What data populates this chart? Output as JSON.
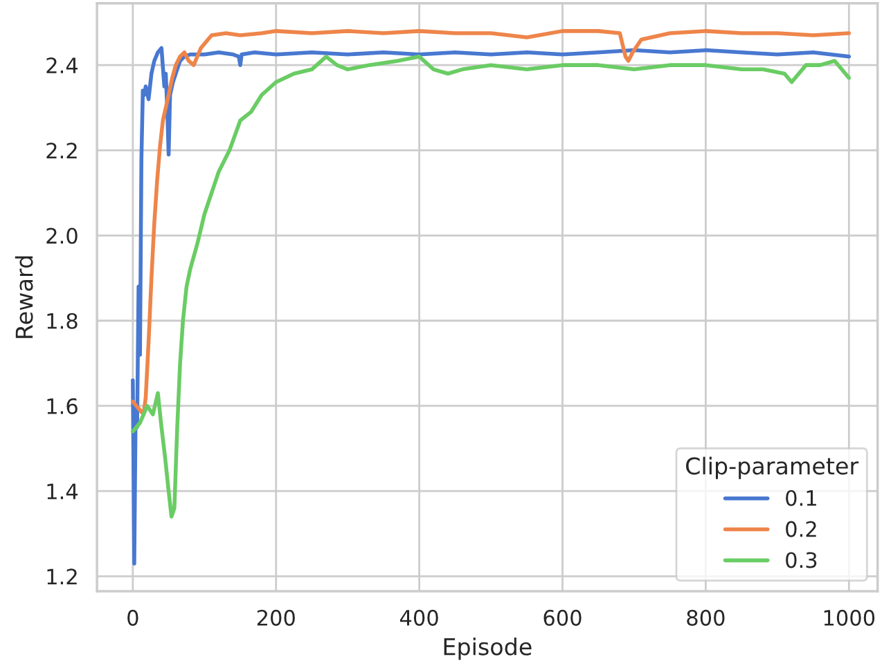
{
  "chart_data": {
    "type": "line",
    "xlabel": "Episode",
    "ylabel": "Reward",
    "legend_title": "Clip-parameter",
    "legend": "bottom right",
    "grid": true,
    "xlim": [
      -50,
      1040
    ],
    "ylim": [
      1.165,
      2.545
    ],
    "xticks": [
      0,
      200,
      400,
      600,
      800,
      1000
    ],
    "yticks": [
      1.2,
      1.4,
      1.6,
      1.8,
      {
        "value": 2,
        "label": "2.0"
      },
      2.2,
      2.4
    ],
    "series": [
      {
        "name": "0.1",
        "color": "#4878d0",
        "x": [
          0,
          2,
          4,
          6,
          8,
          10,
          12,
          14,
          16,
          18,
          22,
          26,
          30,
          35,
          40,
          44,
          46,
          48,
          50,
          52,
          56,
          60,
          66,
          72,
          80,
          100,
          120,
          140,
          148,
          150,
          152,
          170,
          200,
          250,
          300,
          350,
          400,
          450,
          500,
          550,
          600,
          650,
          700,
          750,
          800,
          850,
          900,
          950,
          1000
        ],
        "values": [
          1.66,
          1.23,
          1.6,
          1.55,
          1.88,
          1.72,
          2.18,
          2.34,
          2.33,
          2.35,
          2.32,
          2.38,
          2.41,
          2.43,
          2.44,
          2.35,
          2.38,
          2.3,
          2.19,
          2.33,
          2.36,
          2.38,
          2.41,
          2.42,
          2.425,
          2.425,
          2.43,
          2.425,
          2.42,
          2.4,
          2.425,
          2.43,
          2.425,
          2.43,
          2.425,
          2.43,
          2.425,
          2.43,
          2.425,
          2.43,
          2.425,
          2.43,
          2.435,
          2.43,
          2.435,
          2.43,
          2.425,
          2.43,
          2.42
        ]
      },
      {
        "name": "0.2",
        "color": "#ee854a",
        "x": [
          0,
          5,
          10,
          15,
          18,
          22,
          26,
          30,
          34,
          38,
          42,
          46,
          50,
          55,
          60,
          66,
          72,
          78,
          85,
          95,
          110,
          130,
          150,
          180,
          200,
          250,
          300,
          350,
          400,
          450,
          500,
          550,
          600,
          650,
          680,
          688,
          692,
          698,
          710,
          750,
          800,
          850,
          900,
          950,
          1000
        ],
        "values": [
          1.61,
          1.6,
          1.59,
          1.58,
          1.62,
          1.75,
          1.9,
          2.03,
          2.13,
          2.21,
          2.27,
          2.3,
          2.33,
          2.37,
          2.4,
          2.42,
          2.43,
          2.41,
          2.4,
          2.44,
          2.47,
          2.475,
          2.47,
          2.475,
          2.48,
          2.475,
          2.48,
          2.475,
          2.48,
          2.475,
          2.475,
          2.465,
          2.48,
          2.48,
          2.475,
          2.42,
          2.41,
          2.43,
          2.46,
          2.475,
          2.48,
          2.475,
          2.475,
          2.47,
          2.475
        ]
      },
      {
        "name": "0.3",
        "color": "#6acc64",
        "x": [
          0,
          10,
          20,
          28,
          35,
          40,
          45,
          50,
          54,
          58,
          62,
          66,
          70,
          75,
          80,
          90,
          100,
          110,
          120,
          135,
          150,
          165,
          180,
          200,
          225,
          250,
          270,
          285,
          300,
          330,
          370,
          400,
          420,
          440,
          460,
          500,
          550,
          600,
          650,
          700,
          750,
          800,
          850,
          880,
          910,
          920,
          940,
          960,
          980,
          990,
          1000
        ],
        "values": [
          1.54,
          1.56,
          1.6,
          1.58,
          1.63,
          1.55,
          1.48,
          1.4,
          1.34,
          1.36,
          1.55,
          1.7,
          1.8,
          1.88,
          1.92,
          1.98,
          2.05,
          2.1,
          2.15,
          2.2,
          2.27,
          2.29,
          2.33,
          2.36,
          2.38,
          2.39,
          2.42,
          2.4,
          2.39,
          2.4,
          2.41,
          2.42,
          2.39,
          2.38,
          2.39,
          2.4,
          2.39,
          2.4,
          2.4,
          2.39,
          2.4,
          2.4,
          2.39,
          2.39,
          2.38,
          2.36,
          2.4,
          2.4,
          2.41,
          2.39,
          2.37
        ]
      }
    ]
  }
}
